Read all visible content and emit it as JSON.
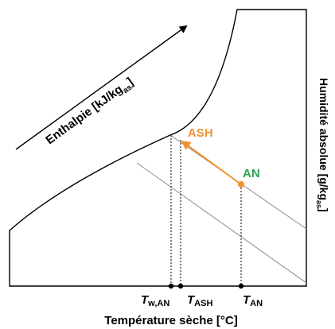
{
  "labels": {
    "enthalpy": {
      "main": "Enthalpie [kJ/kg",
      "sub": "as",
      "close": "]"
    },
    "humidity": {
      "main": "Humidité absolue [g/kg",
      "sub": "as",
      "close": "]"
    },
    "temperature": "Température sèche [°C]"
  },
  "points": {
    "an": {
      "label": "AN",
      "color": "#2e9e55"
    },
    "ash": {
      "label": "ASH",
      "color": "#f0932e"
    }
  },
  "ticks": [
    {
      "symbol": "T",
      "sub": "w,AN"
    },
    {
      "symbol": "T",
      "sub": "ASH"
    },
    {
      "symbol": "T",
      "sub": "AN"
    }
  ],
  "colors": {
    "process_arrow": "#f0932e",
    "outline": "#000000",
    "enthalpy_lines": "#8c8c8c"
  }
}
